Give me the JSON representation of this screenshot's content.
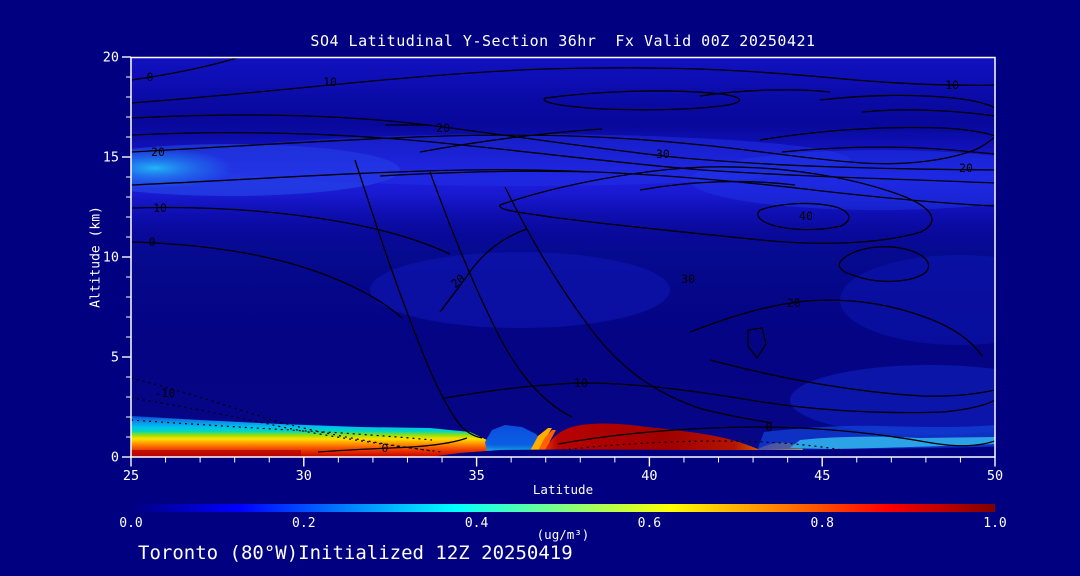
{
  "annotations": {
    "footer": "Toronto (80°W)Initialized 12Z 20250419"
  },
  "colors": {
    "background": "#000080",
    "plot_border": "#ffffff",
    "axis_text": "#ffffff",
    "contour_line": "#000000",
    "colorbar_jet": [
      "#000080",
      "#0000ff",
      "#00ffff",
      "#80ff80",
      "#ffff00",
      "#ff8000",
      "#ff0000",
      "#800000"
    ]
  },
  "chart_data": {
    "type": "heatmap",
    "title": "SO4 Latitudinal Y-Section 36hr  Fx Valid 00Z 20250421",
    "species": "SO4",
    "forecast_hour": "36hr",
    "valid": "00Z 20250421",
    "initialized": "12Z 20250419",
    "location": "Toronto (80°W)",
    "xlabel": "Latitude",
    "ylabel": "Altitude (km)",
    "xlim": [
      25,
      50
    ],
    "ylim": [
      0,
      20
    ],
    "x_ticks": [
      25,
      30,
      35,
      40,
      45,
      50
    ],
    "x_minor_step": 1,
    "y_ticks": [
      0,
      5,
      10,
      15,
      20
    ],
    "y_minor_step": 1,
    "colorbar": {
      "min": 0.0,
      "max": 1.0,
      "ticks": [
        "0.0",
        "0.2",
        "0.4",
        "0.6",
        "0.8",
        "1.0"
      ],
      "unit": "(ug/m³)"
    },
    "grid": {
      "description": "Estimated filled-contour SO4 concentration (ug/m3) read from colors",
      "lat": [
        25,
        27.5,
        30,
        32.5,
        35,
        37.5,
        40,
        42.5,
        45,
        47.5,
        50
      ],
      "alt_km": [
        20,
        18,
        16,
        14,
        12,
        10,
        8,
        6,
        4,
        2,
        1,
        0
      ],
      "so4": [
        [
          0.15,
          0.15,
          0.15,
          0.15,
          0.15,
          0.15,
          0.15,
          0.15,
          0.15,
          0.15,
          0.15
        ],
        [
          0.12,
          0.12,
          0.12,
          0.12,
          0.1,
          0.1,
          0.1,
          0.1,
          0.1,
          0.1,
          0.1
        ],
        [
          0.2,
          0.18,
          0.15,
          0.15,
          0.15,
          0.12,
          0.12,
          0.15,
          0.15,
          0.15,
          0.15
        ],
        [
          0.4,
          0.3,
          0.28,
          0.28,
          0.3,
          0.25,
          0.3,
          0.3,
          0.3,
          0.28,
          0.25
        ],
        [
          0.2,
          0.18,
          0.15,
          0.15,
          0.18,
          0.15,
          0.2,
          0.22,
          0.2,
          0.18,
          0.15
        ],
        [
          0.1,
          0.08,
          0.08,
          0.08,
          0.1,
          0.08,
          0.1,
          0.12,
          0.1,
          0.1,
          0.1
        ],
        [
          0.08,
          0.06,
          0.06,
          0.08,
          0.12,
          0.1,
          0.08,
          0.08,
          0.1,
          0.12,
          0.12
        ],
        [
          0.06,
          0.06,
          0.06,
          0.06,
          0.08,
          0.06,
          0.06,
          0.06,
          0.08,
          0.1,
          0.1
        ],
        [
          0.08,
          0.06,
          0.06,
          0.08,
          0.08,
          0.06,
          0.06,
          0.06,
          0.1,
          0.12,
          0.12
        ],
        [
          0.35,
          0.3,
          0.3,
          0.25,
          0.2,
          0.15,
          0.2,
          0.15,
          0.2,
          0.25,
          0.25
        ],
        [
          0.7,
          0.65,
          0.65,
          0.55,
          0.4,
          0.9,
          0.95,
          0.9,
          0.3,
          0.3,
          0.3
        ],
        [
          0.9,
          0.88,
          0.88,
          0.85,
          0.6,
          1.0,
          1.0,
          0.95,
          0.45,
          0.38,
          0.32
        ]
      ]
    },
    "contour_labels": [
      {
        "value": "0",
        "lat": 25.55,
        "alt": 19.0
      },
      {
        "value": "10",
        "lat": 30.76,
        "alt": 18.75
      },
      {
        "value": "10",
        "lat": 48.76,
        "alt": 18.6
      },
      {
        "value": "20",
        "lat": 34.03,
        "alt": 16.45
      },
      {
        "value": "20",
        "lat": 25.78,
        "alt": 15.25
      },
      {
        "value": "30",
        "lat": 40.39,
        "alt": 15.15
      },
      {
        "value": "20",
        "lat": 49.16,
        "alt": 14.45
      },
      {
        "value": "10",
        "lat": 25.84,
        "alt": 12.45
      },
      {
        "value": "40",
        "lat": 44.53,
        "alt": 12.05
      },
      {
        "value": "0",
        "lat": 25.61,
        "alt": 10.75
      },
      {
        "value": "30",
        "lat": 41.12,
        "alt": 8.9
      },
      {
        "value": "20",
        "lat": 34.46,
        "alt": 8.8,
        "rot": -40
      },
      {
        "value": "20",
        "lat": 44.18,
        "alt": 7.7
      },
      {
        "value": "10",
        "lat": 38.02,
        "alt": 3.7
      },
      {
        "value": "-10",
        "lat": 25.98,
        "alt": 3.2
      },
      {
        "value": "0",
        "lat": 43.46,
        "alt": 1.5
      },
      {
        "value": "0",
        "lat": 32.35,
        "alt": 0.45
      }
    ]
  }
}
